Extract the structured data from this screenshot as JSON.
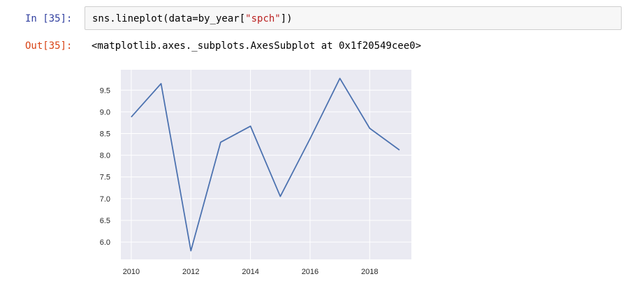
{
  "cell": {
    "in_prompt": "In [35]:",
    "code_prefix": "sns.lineplot(data=by_year[",
    "code_string": "\"spch\"",
    "code_suffix": "])",
    "out_prompt": "Out[35]:",
    "output_text": "<matplotlib.axes._subplots.AxesSubplot at 0x1f20549cee0>"
  },
  "chart_data": {
    "type": "line",
    "x": [
      2010,
      2011,
      2012,
      2013,
      2014,
      2015,
      2016,
      2017,
      2018,
      2019
    ],
    "series": [
      {
        "values": [
          8.88,
          9.65,
          5.8,
          8.3,
          8.67,
          7.05,
          8.38,
          9.77,
          8.62,
          8.12
        ],
        "color": "#4c72b0"
      }
    ],
    "xticks": [
      2010,
      2012,
      2014,
      2016,
      2018
    ],
    "yticks": [
      6.0,
      6.5,
      7.0,
      7.5,
      8.0,
      8.5,
      9.0,
      9.5
    ],
    "xlim": [
      2009.65,
      2019.4
    ],
    "ylim": [
      5.6,
      9.97
    ],
    "grid": true,
    "background": "#eaeaf2",
    "title": "",
    "xlabel": "",
    "ylabel": ""
  }
}
